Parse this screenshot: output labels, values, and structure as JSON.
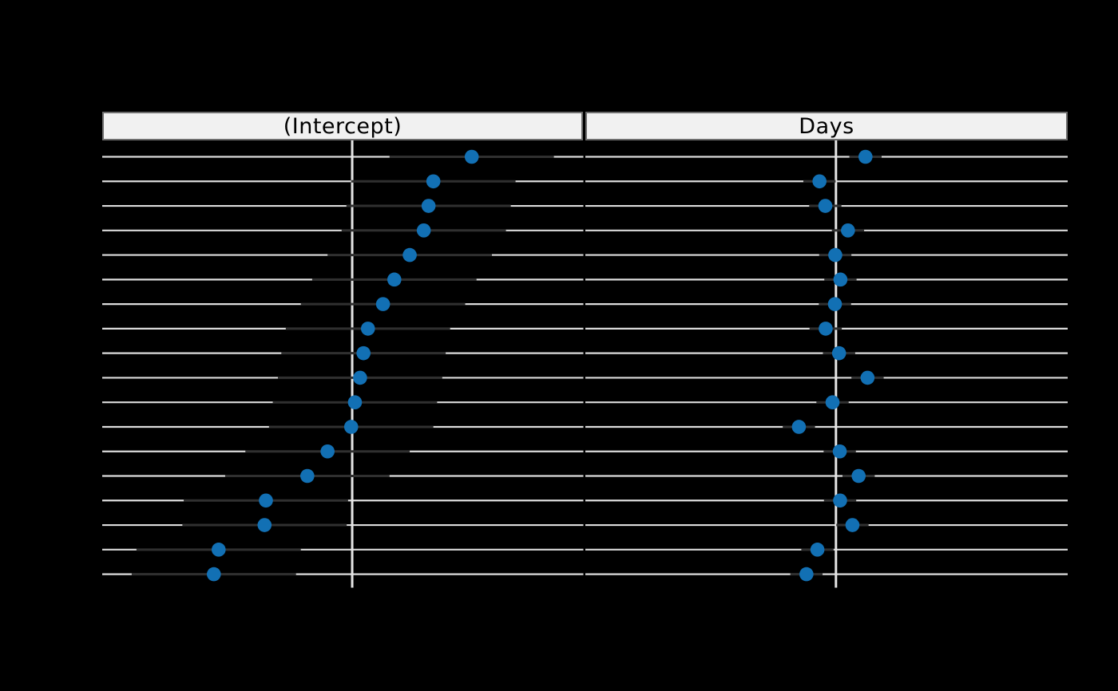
{
  "chart_data": {
    "type": "dotplot",
    "title": "",
    "description": "Two-panel caterpillar dot plot of per-group effects with intervals; 18 rows ordered top to bottom by the (Intercept) panel; axis tick and row labels are not visible (black on black background).",
    "row_order": "top-to-bottom",
    "n_rows": 18,
    "xlim": [
      -73,
      67.5
    ],
    "reference_line_x": 0,
    "grid": true,
    "legend": "none",
    "panels": [
      {
        "title": "(Intercept)",
        "ci_half_width": 24.0,
        "values": [
          34.9,
          23.7,
          22.3,
          20.9,
          16.8,
          12.3,
          9.0,
          4.6,
          3.3,
          2.3,
          0.8,
          -0.3,
          -7.2,
          -13.1,
          -25.2,
          -25.6,
          -39.0,
          -40.4
        ]
      },
      {
        "title": "Days",
        "ci_half_width": 4.7,
        "values": [
          8.6,
          -4.8,
          -3.1,
          3.5,
          -0.2,
          1.3,
          -0.3,
          -3.0,
          0.9,
          9.2,
          -1.0,
          -10.8,
          1.1,
          6.6,
          1.2,
          4.8,
          -5.4,
          -8.6
        ]
      }
    ],
    "colors": {
      "background": "#000000",
      "point": "#1270b4",
      "interval": "#303030",
      "grid_line": "#dcdcdc",
      "zero_line": "#e6e6e6",
      "strip_fill": "#f1f1f1",
      "strip_border": "#6e6e6e",
      "strip_text": "#000000"
    }
  }
}
